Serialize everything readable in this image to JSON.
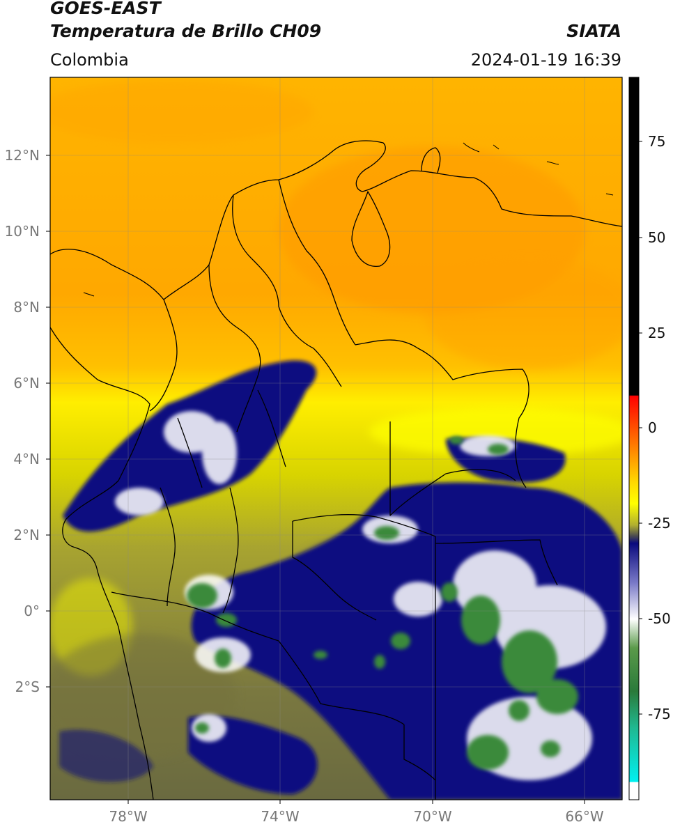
{
  "header": {
    "title_line1": "GOES-EAST",
    "title_line2": "Temperatura de Brillo CH09",
    "organization": "SIATA",
    "region": "Colombia",
    "datetime": "2024-01-19 16:39"
  },
  "map": {
    "lat_labels": [
      "12°N",
      "10°N",
      "8°N",
      "6°N",
      "4°N",
      "2°N",
      "0°",
      "2°S"
    ],
    "lon_labels": [
      "78°W",
      "74°W",
      "70°W",
      "66°W"
    ],
    "gridlines": true
  },
  "colorbar": {
    "ticks": [
      "75",
      "50",
      "25",
      "0",
      "-25",
      "-50",
      "-75"
    ],
    "colors": {
      "warm_high": "#000000",
      "red": "#e8180a",
      "orange": "#ff9a00",
      "yellow": "#ffff00",
      "olive": "#8c8a3a",
      "navy": "#0a0a7e",
      "white": "#ffffff",
      "green": "#3a8a3a",
      "cyan": "#00e5e5"
    }
  }
}
